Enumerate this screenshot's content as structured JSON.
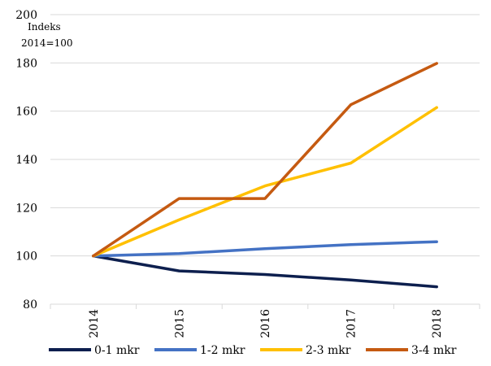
{
  "chart_data": {
    "type": "line",
    "title": "",
    "xlabel": "",
    "ylabel_line1": "Indeks",
    "ylabel_line2": "2014=100",
    "categories": [
      "2014",
      "2015",
      "2016",
      "2017",
      "2018"
    ],
    "ylim": [
      80,
      200
    ],
    "yticks": [
      "80",
      "100",
      "120",
      "140",
      "160",
      "180",
      "200"
    ],
    "grid": "horizontal",
    "legend_position": "bottom",
    "series": [
      {
        "name": "0-1 mkr",
        "color": "#0d1f4e",
        "values": [
          100,
          93.8,
          92.3,
          90,
          87.2
        ]
      },
      {
        "name": "1-2 mkr",
        "color": "#4472c4",
        "values": [
          100,
          101,
          103,
          104.7,
          105.9
        ]
      },
      {
        "name": "2-3 mkr",
        "color": "#ffc000",
        "values": [
          100,
          115,
          129,
          138.5,
          161.5
        ]
      },
      {
        "name": "3-4 mkr",
        "color": "#c55a11",
        "values": [
          100,
          123.8,
          123.8,
          162.7,
          179.8
        ]
      }
    ]
  }
}
